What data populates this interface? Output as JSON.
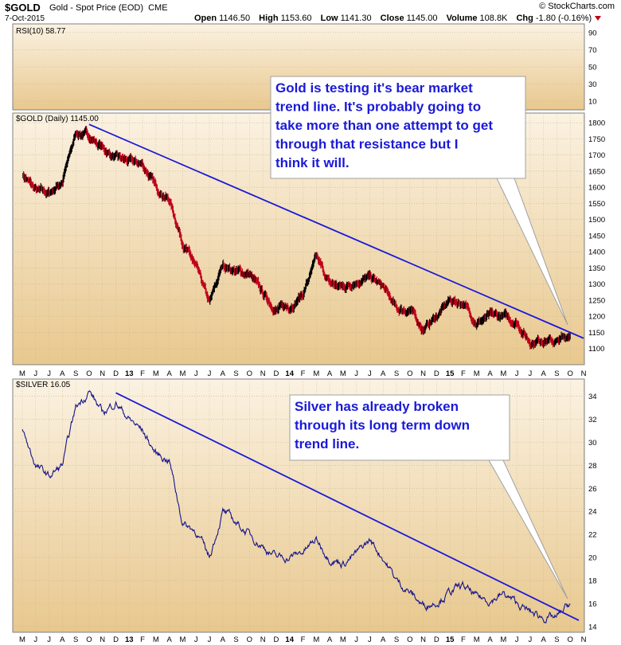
{
  "header": {
    "symbol": "$GOLD",
    "description": "Gold - Spot Price (EOD)",
    "exchange": "CME",
    "date": "7-Oct-2015",
    "brand": "© StockCharts.com",
    "open_label": "Open",
    "open": "1146.50",
    "high_label": "High",
    "high": "1153.60",
    "low_label": "Low",
    "low": "1141.30",
    "close_label": "Close",
    "close": "1145.00",
    "volume_label": "Volume",
    "volume": "108.8K",
    "chg_label": "Chg",
    "chg": "-1.80 (-0.16%)"
  },
  "rsi": {
    "label": "RSI(10) 58.77",
    "ticks": [
      "90",
      "70",
      "50",
      "30",
      "10"
    ]
  },
  "gold_panel": {
    "label": "$GOLD (Daily) 1145.00",
    "annotation": "Gold is testing it's bear market trend line. It's probably going to take more than one attempt to get through that resistance but I think it will.",
    "annotation_lines": [
      "Gold is testing it's bear market",
      "trend line. It's probably going to",
      "take more than one attempt to get",
      "through that resistance but I",
      "think it will."
    ]
  },
  "silver_panel": {
    "label": "$SILVER 16.05",
    "annotation": "Silver has already broken through its long term down trend line.",
    "annotation_lines": [
      "Silver has already broken",
      "through its long term down",
      "trend line."
    ]
  },
  "x_axis_labels": [
    "M",
    "J",
    "J",
    "A",
    "S",
    "O",
    "N",
    "D",
    "13",
    "F",
    "M",
    "A",
    "M",
    "J",
    "J",
    "A",
    "S",
    "O",
    "N",
    "D",
    "14",
    "F",
    "M",
    "A",
    "M",
    "J",
    "J",
    "A",
    "S",
    "O",
    "N",
    "D",
    "15",
    "F",
    "M",
    "A",
    "M",
    "J",
    "J",
    "A",
    "S",
    "O",
    "N"
  ],
  "colors": {
    "trendline": "#1a1ad8",
    "gold_up": "#000000",
    "gold_down": "#c0001a",
    "silver": "#14148c",
    "callout_text": "#1a1ad8",
    "panel_bg_top": "#fbf2e2",
    "panel_bg_bottom": "#e8c88e"
  },
  "chart_data": [
    {
      "type": "line",
      "title": "RSI(10) 58.77",
      "ylim": [
        0,
        100
      ],
      "y_ticks": [
        90,
        70,
        50,
        30,
        10
      ],
      "series": [
        {
          "name": "RSI(10)",
          "values": []
        }
      ]
    },
    {
      "type": "line",
      "title": "$GOLD (Daily) 1145.00",
      "ylim": [
        1050,
        1830
      ],
      "y_ticks": [
        1800,
        1750,
        1700,
        1650,
        1600,
        1550,
        1500,
        1450,
        1400,
        1350,
        1300,
        1250,
        1200,
        1150,
        1100
      ],
      "x": [
        "2012-05",
        "2012-06",
        "2012-07",
        "2012-08",
        "2012-09",
        "2012-10",
        "2012-11",
        "2012-12",
        "2013-01",
        "2013-02",
        "2013-03",
        "2013-04",
        "2013-05",
        "2013-06",
        "2013-07",
        "2013-08",
        "2013-09",
        "2013-10",
        "2013-11",
        "2013-12",
        "2014-01",
        "2014-02",
        "2014-03",
        "2014-04",
        "2014-05",
        "2014-06",
        "2014-07",
        "2014-08",
        "2014-09",
        "2014-10",
        "2014-11",
        "2014-12",
        "2015-01",
        "2015-02",
        "2015-03",
        "2015-04",
        "2015-05",
        "2015-06",
        "2015-07",
        "2015-08",
        "2015-09",
        "2015-10"
      ],
      "series": [
        {
          "name": "$GOLD",
          "values": [
            1640,
            1590,
            1580,
            1620,
            1770,
            1760,
            1720,
            1690,
            1680,
            1670,
            1600,
            1560,
            1430,
            1350,
            1240,
            1360,
            1340,
            1330,
            1270,
            1220,
            1230,
            1270,
            1380,
            1300,
            1290,
            1310,
            1320,
            1290,
            1220,
            1220,
            1160,
            1200,
            1250,
            1240,
            1180,
            1200,
            1200,
            1180,
            1120,
            1130,
            1120,
            1145
          ]
        }
      ],
      "trendline": {
        "x": [
          "2012-10",
          "2015-10"
        ],
        "y": [
          1795,
          1150
        ]
      }
    },
    {
      "type": "line",
      "title": "$SILVER 16.05",
      "ylim": [
        13.5,
        35.5
      ],
      "y_ticks": [
        34,
        32,
        30,
        28,
        26,
        24,
        22,
        20,
        18,
        16,
        14
      ],
      "x": [
        "2012-05",
        "2012-06",
        "2012-07",
        "2012-08",
        "2012-09",
        "2012-10",
        "2012-11",
        "2012-12",
        "2013-01",
        "2013-02",
        "2013-03",
        "2013-04",
        "2013-05",
        "2013-06",
        "2013-07",
        "2013-08",
        "2013-09",
        "2013-10",
        "2013-11",
        "2013-12",
        "2014-01",
        "2014-02",
        "2014-03",
        "2014-04",
        "2014-05",
        "2014-06",
        "2014-07",
        "2014-08",
        "2014-09",
        "2014-10",
        "2014-11",
        "2014-12",
        "2015-01",
        "2015-02",
        "2015-03",
        "2015-04",
        "2015-05",
        "2015-06",
        "2015-07",
        "2015-08",
        "2015-09",
        "2015-10"
      ],
      "series": [
        {
          "name": "$SILVER",
          "values": [
            31,
            28,
            27,
            28,
            33,
            34.5,
            32.5,
            33.5,
            32,
            31,
            29,
            28.5,
            23,
            22.3,
            20,
            24,
            23,
            22,
            21,
            20,
            20,
            20.5,
            21.5,
            20,
            19.5,
            20.3,
            21.5,
            20,
            18,
            17,
            15.8,
            16.2,
            17,
            17.5,
            16.5,
            16.3,
            16.8,
            16,
            15.2,
            14.8,
            14.7,
            16.05
          ]
        }
      ],
      "trendline": {
        "x": [
          "2012-12",
          "2015-10"
        ],
        "y": [
          34.3,
          14.9
        ]
      }
    }
  ]
}
